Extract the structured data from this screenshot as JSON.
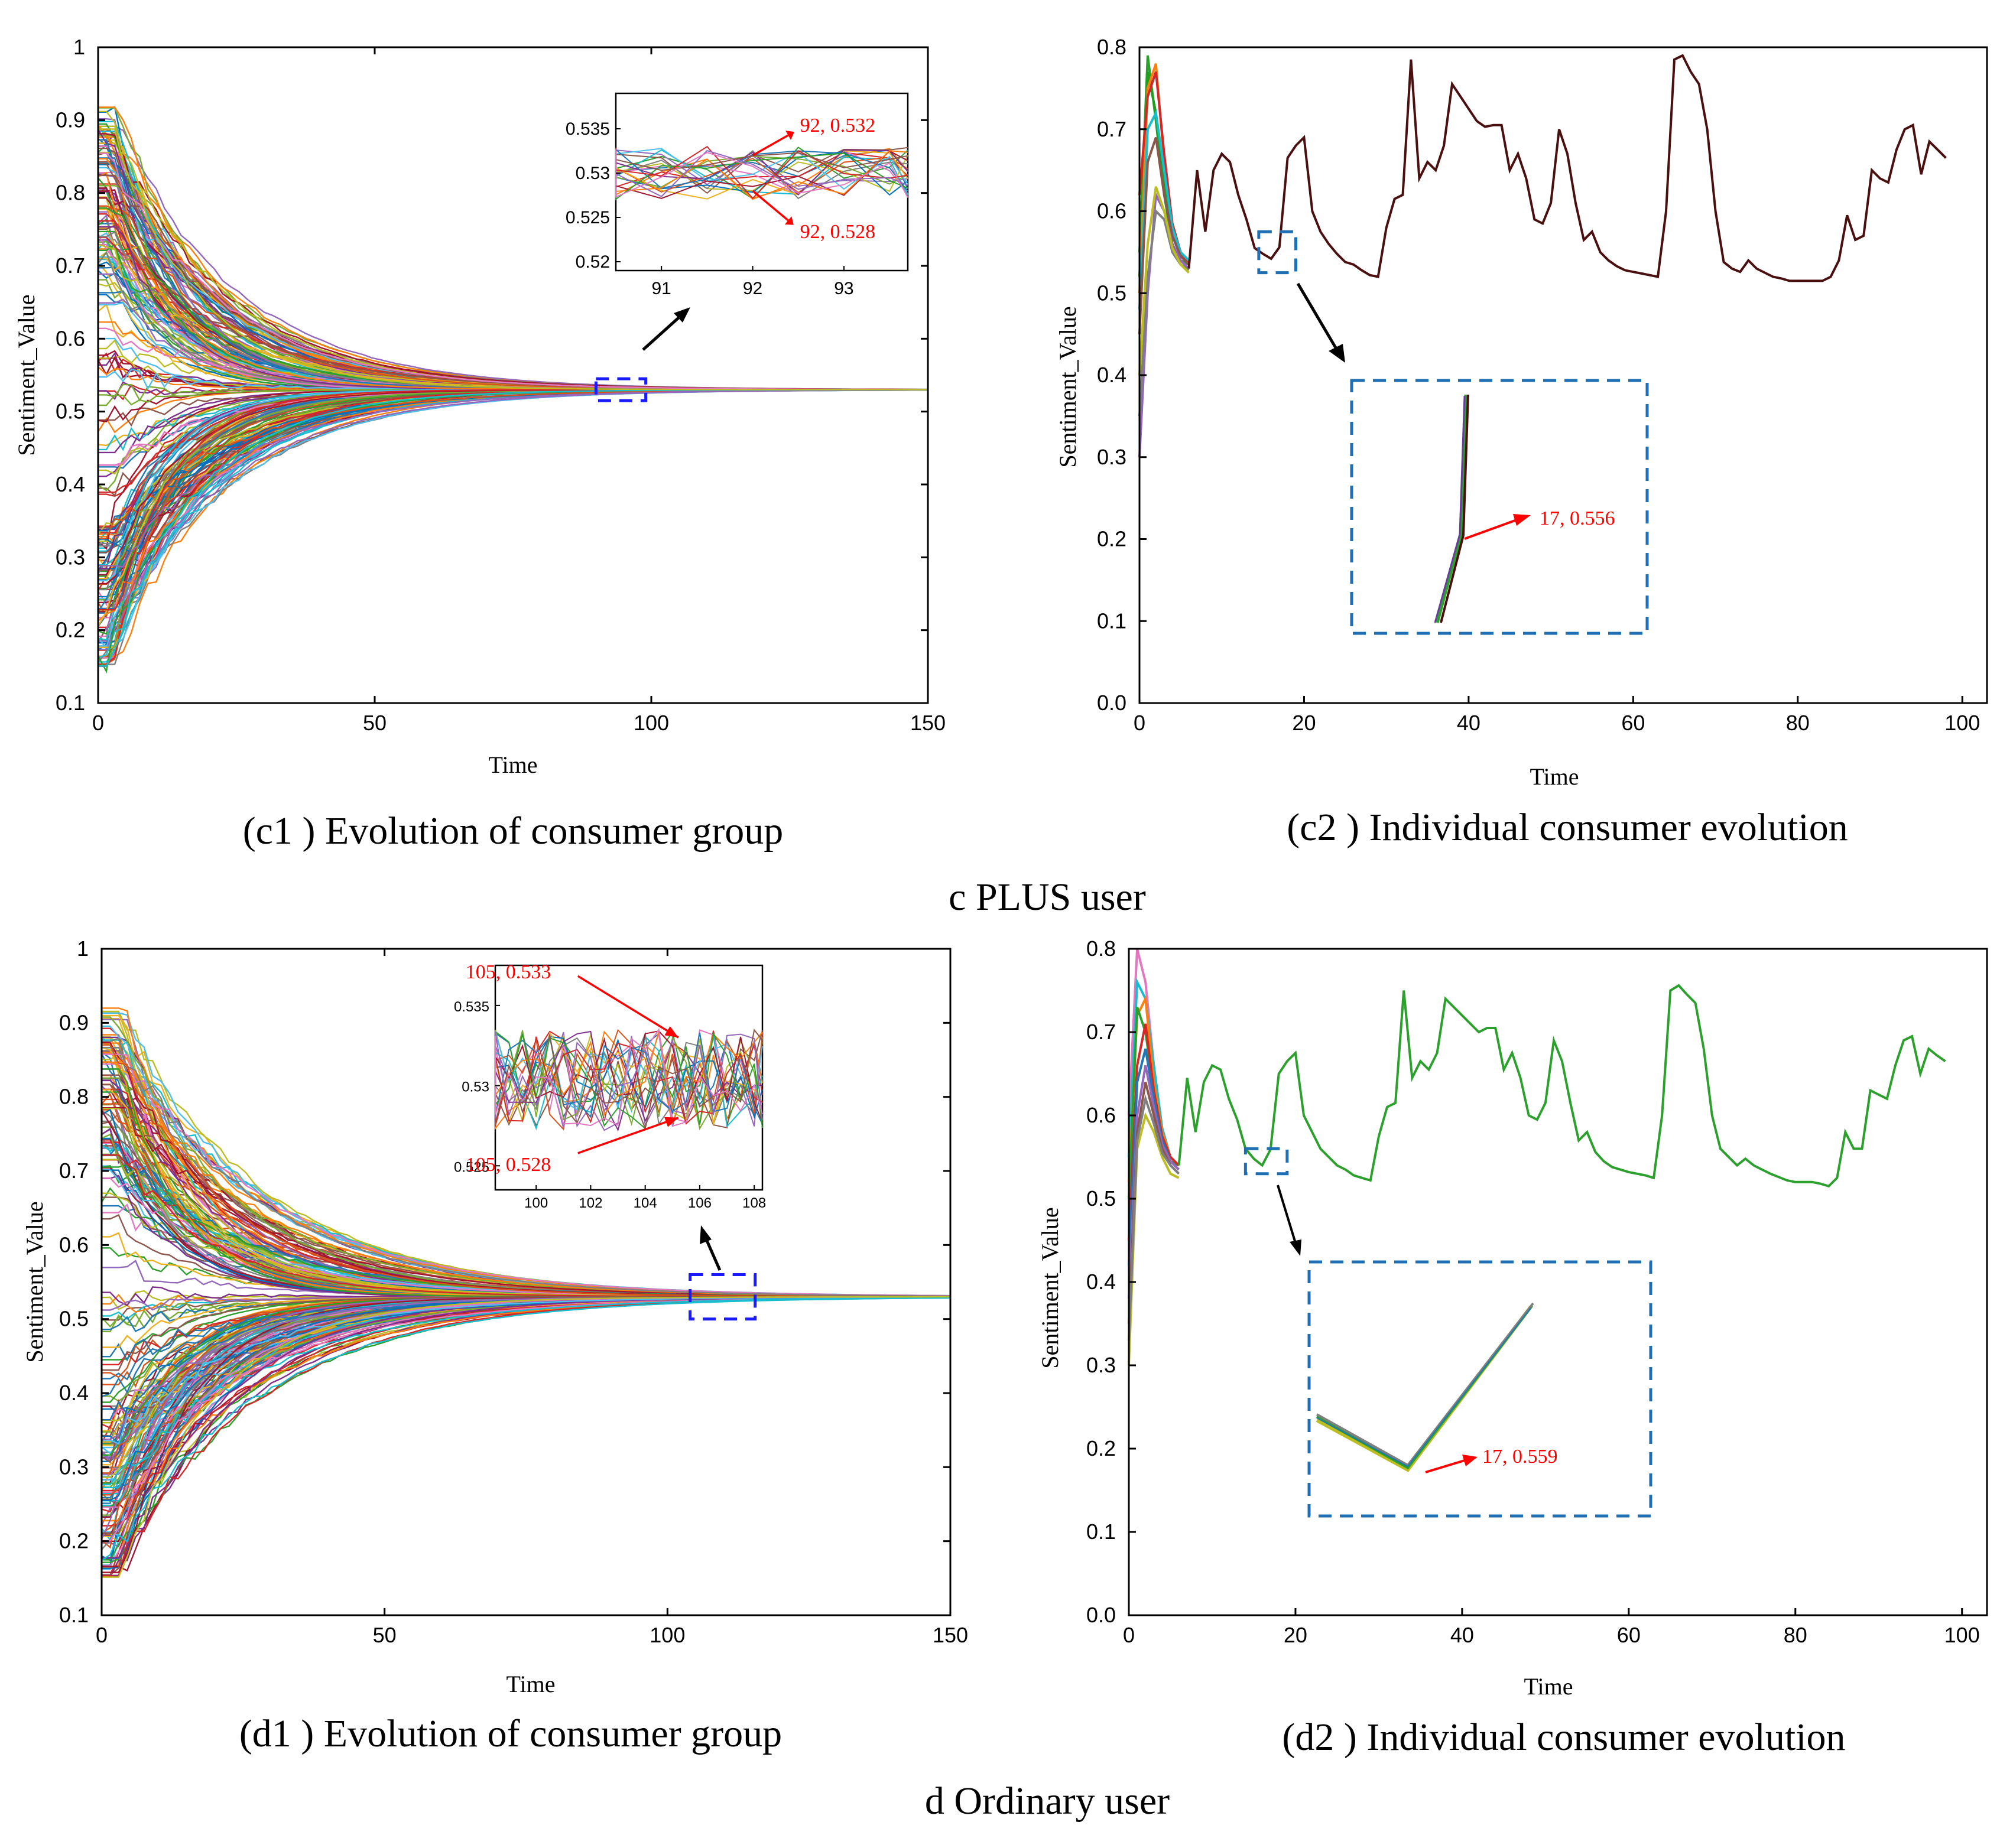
{
  "figure": {
    "section_c_label": "c  PLUS user",
    "section_d_label": "d  Ordinary user"
  },
  "chart_data": [
    {
      "id": "c1",
      "type": "line",
      "caption": "(c1 ) Evolution of consumer group",
      "xlabel": "Time",
      "ylabel": "Sentiment_Value",
      "xlim": [
        0,
        150
      ],
      "ylim": [
        0.1,
        1
      ],
      "xticks": [
        0,
        50,
        100,
        150
      ],
      "xtick_labels": [
        "0",
        "50",
        "100",
        "150"
      ],
      "yticks": [
        0.1,
        0.2,
        0.3,
        0.4,
        0.5,
        0.6,
        0.7,
        0.8,
        0.9,
        1
      ],
      "ytick_labels": [
        "0.1",
        "0.2",
        "0.3",
        "0.4",
        "0.5",
        "0.6",
        "0.7",
        "0.8",
        "0.9",
        "1"
      ],
      "series_description": "Several hundred consumer sentiment trajectories starting between 0.15 and 0.92 and converging to about 0.53 by time 80",
      "converged_value": 0.53,
      "convergence_time": 80,
      "initial_range": [
        0.15,
        0.92
      ],
      "zoom_box_x": [
        90,
        99
      ],
      "zoom_box_y": [
        0.515,
        0.545
      ],
      "inset": {
        "xlim": [
          90.5,
          93.7
        ],
        "ylim": [
          0.519,
          0.539
        ],
        "xticks": [
          91,
          92,
          93
        ],
        "xtick_labels": [
          "91",
          "92",
          "93"
        ],
        "yticks": [
          0.52,
          0.525,
          0.53,
          0.535
        ],
        "ytick_labels": [
          "0.52",
          "0.525",
          "0.53",
          "0.535"
        ],
        "band": [
          0.527,
          0.533
        ],
        "annotations": [
          {
            "text": "92, 0.532",
            "x": 92,
            "y": 0.532
          },
          {
            "text": "92, 0.528",
            "x": 92,
            "y": 0.528
          }
        ]
      }
    },
    {
      "id": "c2",
      "type": "line",
      "caption": "(c2 ) Individual consumer evolution",
      "xlabel": "Time",
      "ylabel": "Sentiment_Value",
      "xlim": [
        0,
        103
      ],
      "ylim": [
        0,
        0.8
      ],
      "xticks": [
        0,
        20,
        40,
        60,
        80,
        100
      ],
      "xtick_labels": [
        "0",
        "20",
        "40",
        "60",
        "80",
        "100"
      ],
      "yticks": [
        0,
        0.1,
        0.2,
        0.3,
        0.4,
        0.5,
        0.6,
        0.7,
        0.8
      ],
      "ytick_labels": [
        "0.0",
        "0.1",
        "0.2",
        "0.3",
        "0.4",
        "0.5",
        "0.6",
        "0.7",
        "0.8"
      ],
      "main_series_color": "#4a0f0f",
      "main_series": {
        "x": [
          6,
          7,
          8,
          9,
          10,
          11,
          12,
          13,
          14,
          15,
          16,
          17,
          18,
          19,
          20,
          21,
          22,
          23,
          24,
          25,
          26,
          27,
          28,
          29,
          30,
          31,
          32,
          33,
          34,
          35,
          36,
          37,
          38,
          39,
          40,
          41,
          42,
          43,
          44,
          45,
          46,
          47,
          48,
          49,
          50,
          51,
          52,
          53,
          54,
          55,
          56,
          57,
          58,
          59,
          60,
          61,
          62,
          63,
          64,
          65,
          66,
          67,
          68,
          69,
          70,
          71,
          72,
          73,
          74,
          75,
          76,
          77,
          78,
          79,
          80,
          81,
          82,
          83,
          84,
          85,
          86,
          87,
          88,
          89,
          90,
          91,
          92,
          93,
          94,
          95,
          96,
          97,
          98
        ],
        "y": [
          0.53,
          0.65,
          0.575,
          0.65,
          0.67,
          0.66,
          0.62,
          0.59,
          0.555,
          0.548,
          0.542,
          0.556,
          0.665,
          0.68,
          0.69,
          0.6,
          0.575,
          0.56,
          0.548,
          0.538,
          0.535,
          0.528,
          0.522,
          0.52,
          0.58,
          0.615,
          0.62,
          0.785,
          0.64,
          0.66,
          0.65,
          0.68,
          0.755,
          0.74,
          0.725,
          0.71,
          0.703,
          0.705,
          0.705,
          0.65,
          0.67,
          0.64,
          0.59,
          0.585,
          0.61,
          0.7,
          0.67,
          0.61,
          0.565,
          0.575,
          0.55,
          0.54,
          0.533,
          0.528,
          0.526,
          0.524,
          0.522,
          0.52,
          0.6,
          0.785,
          0.79,
          0.77,
          0.755,
          0.7,
          0.6,
          0.538,
          0.53,
          0.526,
          0.54,
          0.53,
          0.525,
          0.52,
          0.518,
          0.515,
          0.515,
          0.515,
          0.515,
          0.515,
          0.52,
          0.54,
          0.595,
          0.565,
          0.57,
          0.65,
          0.64,
          0.635,
          0.675,
          0.7,
          0.705,
          0.645,
          0.685,
          0.675,
          0.665
        ]
      },
      "early_series": [
        {
          "color": "#2ca02c",
          "x": [
            0,
            1,
            2,
            3,
            4,
            5,
            6
          ],
          "y": [
            0.55,
            0.79,
            0.71,
            0.62,
            0.56,
            0.54,
            0.535
          ]
        },
        {
          "color": "#1f9e1f",
          "x": [
            0,
            1,
            2,
            3,
            4,
            5,
            6
          ],
          "y": [
            0.52,
            0.77,
            0.72,
            0.63,
            0.57,
            0.545,
            0.54
          ]
        },
        {
          "color": "#ff7f0e",
          "x": [
            0,
            1,
            2,
            3,
            4,
            5,
            6
          ],
          "y": [
            0.5,
            0.75,
            0.78,
            0.66,
            0.58,
            0.55,
            0.54
          ]
        },
        {
          "color": "#d62728",
          "x": [
            0,
            1,
            2,
            3,
            4,
            5,
            6
          ],
          "y": [
            0.62,
            0.74,
            0.77,
            0.67,
            0.585,
            0.55,
            0.535
          ]
        },
        {
          "color": "#17becf",
          "x": [
            0,
            1,
            2,
            3,
            4,
            5,
            6
          ],
          "y": [
            0.48,
            0.7,
            0.72,
            0.65,
            0.58,
            0.55,
            0.54
          ]
        },
        {
          "color": "#8c564b",
          "x": [
            0,
            1,
            2,
            3,
            4,
            5,
            6
          ],
          "y": [
            0.45,
            0.66,
            0.69,
            0.62,
            0.57,
            0.545,
            0.535
          ]
        },
        {
          "color": "#9467bd",
          "x": [
            0,
            1,
            2,
            3,
            4,
            5,
            6
          ],
          "y": [
            0.3,
            0.5,
            0.62,
            0.6,
            0.56,
            0.54,
            0.53
          ]
        },
        {
          "color": "#7f7f7f",
          "x": [
            0,
            1,
            2,
            3,
            4,
            5,
            6
          ],
          "y": [
            0.35,
            0.52,
            0.6,
            0.59,
            0.55,
            0.535,
            0.528
          ]
        },
        {
          "color": "#bcbd22",
          "x": [
            0,
            1,
            2,
            3,
            4,
            5,
            6
          ],
          "y": [
            0.4,
            0.56,
            0.63,
            0.6,
            0.555,
            0.535,
            0.525
          ]
        }
      ],
      "zoom_box_x": [
        14.5,
        19
      ],
      "zoom_box_y": [
        0.525,
        0.575
      ],
      "inset_annotation": {
        "text": "17, 0.556",
        "x": 17,
        "y": 0.556
      }
    },
    {
      "id": "d1",
      "type": "line",
      "caption": "(d1 ) Evolution of consumer group",
      "xlabel": "Time",
      "ylabel": "Sentiment_Value",
      "xlim": [
        0,
        150
      ],
      "ylim": [
        0.1,
        1
      ],
      "xticks": [
        0,
        50,
        100,
        150
      ],
      "xtick_labels": [
        "0",
        "50",
        "100",
        "150"
      ],
      "yticks": [
        0.1,
        0.2,
        0.3,
        0.4,
        0.5,
        0.6,
        0.7,
        0.8,
        0.9,
        1
      ],
      "ytick_labels": [
        "0.1",
        "0.2",
        "0.3",
        "0.4",
        "0.5",
        "0.6",
        "0.7",
        "0.8",
        "0.9",
        "1"
      ],
      "series_description": "Several hundred consumer sentiment trajectories starting between 0.15 and 0.92 and converging to about 0.53 by time 90",
      "converged_value": 0.53,
      "convergence_time": 90,
      "initial_range": [
        0.15,
        0.92
      ],
      "zoom_box_x": [
        104,
        115.5
      ],
      "zoom_box_y": [
        0.5,
        0.56
      ],
      "inset": {
        "xlim": [
          98.5,
          108.3
        ],
        "ylim": [
          0.5235,
          0.5375
        ],
        "xticks": [
          100,
          102,
          104,
          106,
          108
        ],
        "xtick_labels": [
          "100",
          "102",
          "104",
          "106",
          "108"
        ],
        "yticks": [
          0.525,
          0.53,
          0.535
        ],
        "ytick_labels": [
          "0.525",
          "0.53",
          "0.535"
        ],
        "band": [
          0.5272,
          0.5335
        ],
        "annotations": [
          {
            "text": "105, 0.533",
            "x": 105,
            "y": 0.533
          },
          {
            "text": "105, 0.528",
            "x": 105,
            "y": 0.528
          }
        ]
      }
    },
    {
      "id": "d2",
      "type": "line",
      "caption": "(d2 ) Individual consumer evolution",
      "xlabel": "Time",
      "ylabel": "Sentiment_Value",
      "xlim": [
        0,
        103
      ],
      "ylim": [
        0,
        0.8
      ],
      "xticks": [
        0,
        20,
        40,
        60,
        80,
        100
      ],
      "xtick_labels": [
        "0",
        "20",
        "40",
        "60",
        "80",
        "100"
      ],
      "yticks": [
        0,
        0.1,
        0.2,
        0.3,
        0.4,
        0.5,
        0.6,
        0.7,
        0.8
      ],
      "ytick_labels": [
        "0.0",
        "0.1",
        "0.2",
        "0.3",
        "0.4",
        "0.5",
        "0.6",
        "0.7",
        "0.8"
      ],
      "main_series_color": "#2ca02c",
      "main_series": {
        "x": [
          6,
          7,
          8,
          9,
          10,
          11,
          12,
          13,
          14,
          15,
          16,
          17,
          18,
          19,
          20,
          21,
          22,
          23,
          24,
          25,
          26,
          27,
          28,
          29,
          30,
          31,
          32,
          33,
          34,
          35,
          36,
          37,
          38,
          39,
          40,
          41,
          42,
          43,
          44,
          45,
          46,
          47,
          48,
          49,
          50,
          51,
          52,
          53,
          54,
          55,
          56,
          57,
          58,
          59,
          60,
          61,
          62,
          63,
          64,
          65,
          66,
          67,
          68,
          69,
          70,
          71,
          72,
          73,
          74,
          75,
          76,
          77,
          78,
          79,
          80,
          81,
          82,
          83,
          84,
          85,
          86,
          87,
          88,
          89,
          90,
          91,
          92,
          93,
          94,
          95,
          96,
          97,
          98
        ],
        "y": [
          0.54,
          0.645,
          0.58,
          0.64,
          0.66,
          0.655,
          0.62,
          0.595,
          0.56,
          0.548,
          0.54,
          0.559,
          0.65,
          0.665,
          0.675,
          0.6,
          0.58,
          0.56,
          0.55,
          0.54,
          0.535,
          0.528,
          0.525,
          0.522,
          0.575,
          0.61,
          0.615,
          0.75,
          0.645,
          0.665,
          0.655,
          0.675,
          0.74,
          0.73,
          0.72,
          0.71,
          0.7,
          0.705,
          0.705,
          0.655,
          0.675,
          0.645,
          0.6,
          0.595,
          0.615,
          0.69,
          0.665,
          0.615,
          0.57,
          0.58,
          0.556,
          0.545,
          0.538,
          0.535,
          0.532,
          0.53,
          0.528,
          0.525,
          0.6,
          0.75,
          0.756,
          0.745,
          0.735,
          0.68,
          0.6,
          0.56,
          0.55,
          0.54,
          0.548,
          0.54,
          0.535,
          0.53,
          0.526,
          0.522,
          0.52,
          0.52,
          0.52,
          0.518,
          0.515,
          0.525,
          0.58,
          0.56,
          0.56,
          0.63,
          0.625,
          0.62,
          0.66,
          0.69,
          0.695,
          0.65,
          0.68,
          0.672,
          0.665
        ]
      },
      "early_series": [
        {
          "color": "#e377c2",
          "x": [
            0,
            1,
            2,
            3,
            4,
            5,
            6
          ],
          "y": [
            0.6,
            0.8,
            0.76,
            0.66,
            0.58,
            0.55,
            0.54
          ]
        },
        {
          "color": "#17becf",
          "x": [
            0,
            1,
            2,
            3,
            4,
            5,
            6
          ],
          "y": [
            0.55,
            0.76,
            0.74,
            0.66,
            0.585,
            0.55,
            0.54
          ]
        },
        {
          "color": "#ff7f0e",
          "x": [
            0,
            1,
            2,
            3,
            4,
            5,
            6
          ],
          "y": [
            0.52,
            0.72,
            0.74,
            0.64,
            0.58,
            0.55,
            0.54
          ]
        },
        {
          "color": "#2ca02c",
          "x": [
            0,
            1,
            2,
            3,
            4,
            5,
            6
          ],
          "y": [
            0.5,
            0.73,
            0.7,
            0.63,
            0.57,
            0.545,
            0.54
          ]
        },
        {
          "color": "#d62728",
          "x": [
            0,
            1,
            2,
            3,
            4,
            5,
            6
          ],
          "y": [
            0.45,
            0.66,
            0.71,
            0.63,
            0.575,
            0.55,
            0.54
          ]
        },
        {
          "color": "#1f77b4",
          "x": [
            0,
            1,
            2,
            3,
            4,
            5,
            6
          ],
          "y": [
            0.42,
            0.64,
            0.68,
            0.62,
            0.57,
            0.545,
            0.535
          ]
        },
        {
          "color": "#9467bd",
          "x": [
            0,
            1,
            2,
            3,
            4,
            5,
            6
          ],
          "y": [
            0.38,
            0.6,
            0.66,
            0.61,
            0.565,
            0.545,
            0.535
          ]
        },
        {
          "color": "#8c564b",
          "x": [
            0,
            1,
            2,
            3,
            4,
            5,
            6
          ],
          "y": [
            0.35,
            0.58,
            0.64,
            0.6,
            0.56,
            0.54,
            0.53
          ]
        },
        {
          "color": "#bcbd22",
          "x": [
            0,
            1,
            2,
            3,
            4,
            5,
            6
          ],
          "y": [
            0.3,
            0.56,
            0.6,
            0.58,
            0.55,
            0.53,
            0.525
          ]
        },
        {
          "color": "#7f7f7f",
          "x": [
            0,
            1,
            2,
            3,
            4,
            5,
            6
          ],
          "y": [
            0.33,
            0.57,
            0.62,
            0.59,
            0.555,
            0.54,
            0.53
          ]
        }
      ],
      "zoom_box_x": [
        14,
        19
      ],
      "zoom_box_y": [
        0.53,
        0.56
      ],
      "inset_annotation": {
        "text": "17, 0.559",
        "x": 17,
        "y": 0.559
      }
    }
  ]
}
